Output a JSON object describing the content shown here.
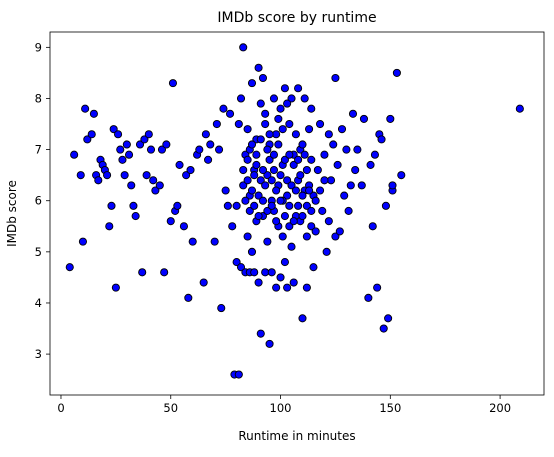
{
  "chart_data": {
    "type": "scatter",
    "title": "IMDb score by runtime",
    "xlabel": "Runtime in minutes",
    "ylabel": "IMDb score",
    "xlim": [
      -5,
      220
    ],
    "ylim": [
      2.2,
      9.3
    ],
    "xticks": [
      0,
      50,
      100,
      150,
      200
    ],
    "yticks": [
      3,
      4,
      5,
      6,
      7,
      8,
      9
    ],
    "grid": false,
    "legend": "none",
    "marker_color": "#0000ff",
    "marker_edge_color": "#000000",
    "points": [
      [
        4,
        4.7
      ],
      [
        6,
        6.9
      ],
      [
        9,
        6.5
      ],
      [
        10,
        5.2
      ],
      [
        11,
        7.8
      ],
      [
        12,
        7.2
      ],
      [
        14,
        7.3
      ],
      [
        15,
        7.7
      ],
      [
        16,
        6.5
      ],
      [
        17,
        6.4
      ],
      [
        18,
        6.8
      ],
      [
        19,
        6.7
      ],
      [
        20,
        6.6
      ],
      [
        21,
        6.5
      ],
      [
        22,
        5.5
      ],
      [
        23,
        5.9
      ],
      [
        24,
        7.4
      ],
      [
        25,
        4.3
      ],
      [
        26,
        7.3
      ],
      [
        27,
        7.0
      ],
      [
        28,
        6.8
      ],
      [
        29,
        6.5
      ],
      [
        30,
        7.1
      ],
      [
        31,
        6.9
      ],
      [
        32,
        6.3
      ],
      [
        33,
        5.9
      ],
      [
        34,
        5.7
      ],
      [
        36,
        7.1
      ],
      [
        37,
        4.6
      ],
      [
        38,
        7.2
      ],
      [
        39,
        6.5
      ],
      [
        40,
        7.3
      ],
      [
        41,
        7.0
      ],
      [
        42,
        6.4
      ],
      [
        43,
        6.2
      ],
      [
        45,
        6.3
      ],
      [
        46,
        7.0
      ],
      [
        47,
        4.6
      ],
      [
        48,
        7.1
      ],
      [
        50,
        5.6
      ],
      [
        51,
        8.3
      ],
      [
        52,
        5.8
      ],
      [
        53,
        5.9
      ],
      [
        54,
        6.7
      ],
      [
        56,
        5.5
      ],
      [
        57,
        6.5
      ],
      [
        58,
        4.1
      ],
      [
        59,
        6.6
      ],
      [
        60,
        5.2
      ],
      [
        62,
        6.9
      ],
      [
        63,
        7.0
      ],
      [
        65,
        4.4
      ],
      [
        66,
        7.3
      ],
      [
        67,
        6.8
      ],
      [
        68,
        7.1
      ],
      [
        70,
        5.2
      ],
      [
        71,
        7.5
      ],
      [
        72,
        7.0
      ],
      [
        73,
        3.9
      ],
      [
        74,
        7.8
      ],
      [
        75,
        6.2
      ],
      [
        76,
        5.9
      ],
      [
        77,
        7.7
      ],
      [
        78,
        5.5
      ],
      [
        79,
        2.6
      ],
      [
        80,
        4.8
      ],
      [
        80,
        5.9
      ],
      [
        81,
        2.6
      ],
      [
        81,
        7.5
      ],
      [
        82,
        4.7
      ],
      [
        82,
        8.0
      ],
      [
        83,
        6.3
      ],
      [
        83,
        9.0
      ],
      [
        84,
        4.6
      ],
      [
        84,
        6.9
      ],
      [
        85,
        5.3
      ],
      [
        85,
        7.4
      ],
      [
        86,
        4.6
      ],
      [
        86,
        6.1
      ],
      [
        87,
        8.3
      ],
      [
        87,
        5.0
      ],
      [
        88,
        6.6
      ],
      [
        88,
        4.6
      ],
      [
        89,
        7.2
      ],
      [
        89,
        5.6
      ],
      [
        90,
        8.6
      ],
      [
        90,
        4.4
      ],
      [
        91,
        3.4
      ],
      [
        91,
        6.4
      ],
      [
        92,
        8.4
      ],
      [
        92,
        5.7
      ],
      [
        93,
        4.6
      ],
      [
        93,
        7.7
      ],
      [
        94,
        6.5
      ],
      [
        94,
        5.2
      ],
      [
        95,
        3.2
      ],
      [
        95,
        7.1
      ],
      [
        96,
        6.0
      ],
      [
        96,
        4.6
      ],
      [
        97,
        8.0
      ],
      [
        97,
        5.8
      ],
      [
        98,
        7.3
      ],
      [
        98,
        4.3
      ],
      [
        99,
        6.3
      ],
      [
        99,
        5.5
      ],
      [
        100,
        7.8
      ],
      [
        100,
        4.5
      ],
      [
        101,
        6.7
      ],
      [
        101,
        5.3
      ],
      [
        102,
        8.2
      ],
      [
        102,
        4.8
      ],
      [
        103,
        6.1
      ],
      [
        103,
        4.3
      ],
      [
        104,
        7.5
      ],
      [
        104,
        5.5
      ],
      [
        105,
        8.0
      ],
      [
        105,
        5.1
      ],
      [
        106,
        6.9
      ],
      [
        106,
        4.4
      ],
      [
        107,
        7.3
      ],
      [
        107,
        5.7
      ],
      [
        108,
        8.2
      ],
      [
        108,
        6.4
      ],
      [
        109,
        7.0
      ],
      [
        109,
        5.6
      ],
      [
        110,
        3.7
      ],
      [
        110,
        7.1
      ],
      [
        111,
        6.2
      ],
      [
        111,
        8.0
      ],
      [
        112,
        4.3
      ],
      [
        112,
        5.3
      ],
      [
        113,
        7.4
      ],
      [
        113,
        6.3
      ],
      [
        114,
        5.5
      ],
      [
        114,
        7.8
      ],
      [
        115,
        6.1
      ],
      [
        115,
        4.7
      ],
      [
        116,
        5.4
      ],
      [
        117,
        6.6
      ],
      [
        118,
        7.5
      ],
      [
        119,
        5.8
      ],
      [
        120,
        6.9
      ],
      [
        121,
        5.0
      ],
      [
        122,
        7.3
      ],
      [
        122,
        5.6
      ],
      [
        123,
        6.4
      ],
      [
        124,
        7.1
      ],
      [
        125,
        8.4
      ],
      [
        125,
        5.3
      ],
      [
        126,
        6.7
      ],
      [
        127,
        5.4
      ],
      [
        128,
        7.4
      ],
      [
        129,
        6.1
      ],
      [
        130,
        7.0
      ],
      [
        131,
        5.8
      ],
      [
        132,
        6.3
      ],
      [
        133,
        7.7
      ],
      [
        134,
        6.6
      ],
      [
        135,
        7.0
      ],
      [
        137,
        6.3
      ],
      [
        138,
        7.6
      ],
      [
        140,
        4.1
      ],
      [
        141,
        6.7
      ],
      [
        142,
        5.5
      ],
      [
        143,
        6.9
      ],
      [
        144,
        4.3
      ],
      [
        145,
        7.3
      ],
      [
        146,
        7.2
      ],
      [
        147,
        3.5
      ],
      [
        148,
        5.9
      ],
      [
        149,
        3.7
      ],
      [
        150,
        7.6
      ],
      [
        151,
        6.2
      ],
      [
        151,
        6.3
      ],
      [
        153,
        8.5
      ],
      [
        155,
        6.5
      ],
      [
        209,
        7.8
      ],
      [
        85,
        6.8
      ],
      [
        86,
        7.0
      ],
      [
        87,
        6.2
      ],
      [
        88,
        6.5
      ],
      [
        89,
        6.9
      ],
      [
        90,
        6.1
      ],
      [
        91,
        7.2
      ],
      [
        92,
        6.6
      ],
      [
        93,
        6.3
      ],
      [
        94,
        7.0
      ],
      [
        95,
        6.8
      ],
      [
        96,
        6.4
      ],
      [
        97,
        6.9
      ],
      [
        98,
        6.2
      ],
      [
        99,
        7.1
      ],
      [
        100,
        6.5
      ],
      [
        101,
        6.0
      ],
      [
        102,
        6.8
      ],
      [
        103,
        6.4
      ],
      [
        104,
        6.9
      ],
      [
        105,
        6.3
      ],
      [
        106,
        6.7
      ],
      [
        107,
        6.2
      ],
      [
        108,
        6.8
      ],
      [
        109,
        6.5
      ],
      [
        110,
        6.1
      ],
      [
        111,
        6.9
      ],
      [
        112,
        6.6
      ],
      [
        113,
        6.2
      ],
      [
        114,
        6.8
      ],
      [
        84,
        6.0
      ],
      [
        86,
        5.8
      ],
      [
        88,
        5.9
      ],
      [
        90,
        5.7
      ],
      [
        92,
        6.0
      ],
      [
        94,
        5.8
      ],
      [
        96,
        5.9
      ],
      [
        98,
        5.6
      ],
      [
        100,
        6.0
      ],
      [
        102,
        5.7
      ],
      [
        104,
        5.9
      ],
      [
        106,
        5.6
      ],
      [
        108,
        5.9
      ],
      [
        110,
        5.7
      ],
      [
        112,
        5.9
      ],
      [
        114,
        5.8
      ],
      [
        116,
        6.0
      ],
      [
        118,
        6.2
      ],
      [
        120,
        6.4
      ],
      [
        97,
        6.6
      ],
      [
        95,
        7.3
      ],
      [
        99,
        7.6
      ],
      [
        101,
        7.4
      ],
      [
        103,
        7.9
      ],
      [
        93,
        7.5
      ],
      [
        91,
        7.9
      ],
      [
        89,
        6.7
      ],
      [
        87,
        7.1
      ],
      [
        85,
        6.4
      ],
      [
        83,
        6.6
      ]
    ]
  }
}
